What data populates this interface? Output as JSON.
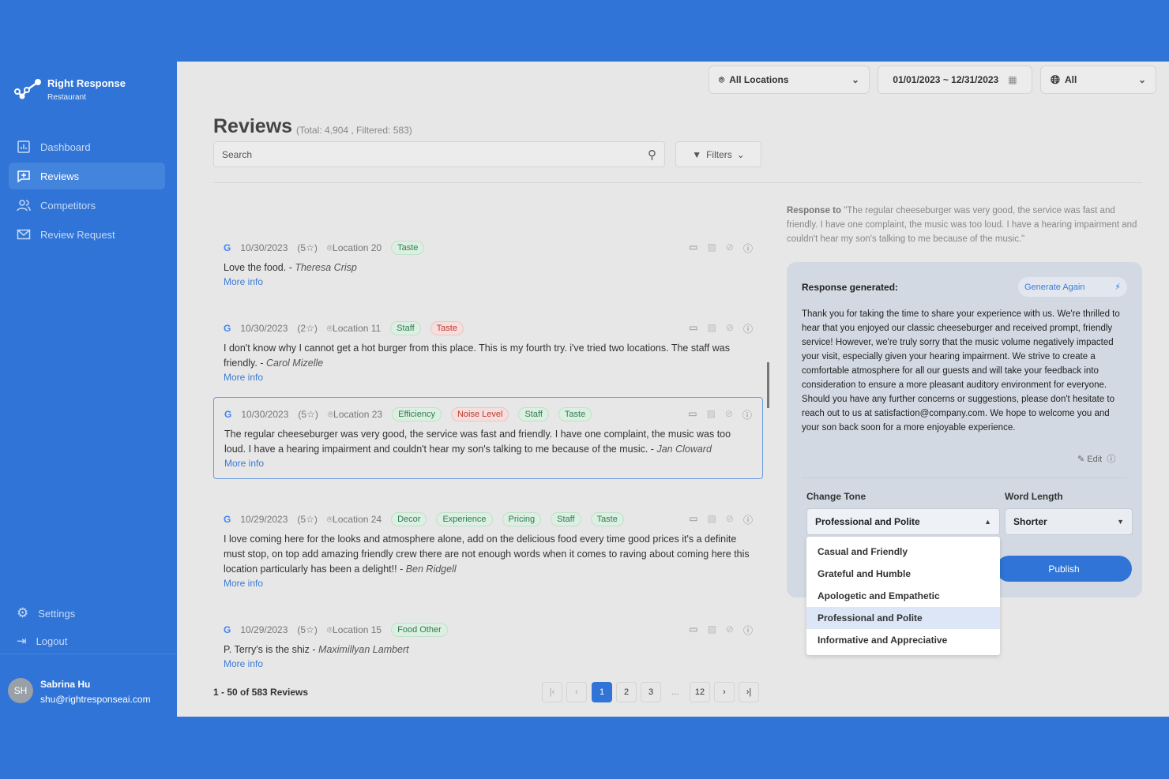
{
  "brand": {
    "name": "Right Response",
    "sub": "Restaurant"
  },
  "nav": [
    {
      "label": "Dashboard"
    },
    {
      "label": "Reviews",
      "active": true
    },
    {
      "label": "Competitors"
    },
    {
      "label": "Review Request"
    }
  ],
  "bottom_nav": [
    {
      "label": "Settings"
    },
    {
      "label": "Logout"
    }
  ],
  "user": {
    "initials": "SH",
    "name": "Sabrina Hu",
    "email": "shu@rightresponseai.com"
  },
  "filters_bar": {
    "location": "All Locations",
    "date_range": "01/01/2023 ~ 12/31/2023",
    "language": "All"
  },
  "page": {
    "title": "Reviews",
    "total": "(Total: 4,904 , Filtered: 583)",
    "search_placeholder": "Search",
    "filters_label": "Filters"
  },
  "colors": {
    "accent": "#2f74d6",
    "tag_positive": "#2e7d4f",
    "tag_negative": "#c0392b"
  },
  "reviews": [
    {
      "date": "10/30/2023",
      "rating": "(5☆)",
      "location": "Location 20",
      "tags": [
        {
          "label": "Taste",
          "sentiment": "positive"
        }
      ],
      "text": "Love the food.",
      "author": "Theresa Crisp",
      "more": "More info"
    },
    {
      "date": "10/30/2023",
      "rating": "(2☆)",
      "location": "Location 11",
      "tags": [
        {
          "label": "Staff",
          "sentiment": "positive"
        },
        {
          "label": "Taste",
          "sentiment": "negative"
        }
      ],
      "text": "I don't know why I cannot get a hot burger from this place. This is my fourth try. i've tried two locations. The staff was friendly.",
      "author": "Carol Mizelle",
      "more": "More info"
    },
    {
      "date": "10/30/2023",
      "rating": "(5☆)",
      "location": "Location 23",
      "tags": [
        {
          "label": "Efficiency",
          "sentiment": "positive"
        },
        {
          "label": "Noise Level",
          "sentiment": "negative"
        },
        {
          "label": "Staff",
          "sentiment": "positive"
        },
        {
          "label": "Taste",
          "sentiment": "positive"
        }
      ],
      "text": "The regular cheeseburger was very good, the service was fast and friendly. I have one complaint, the music was too loud. I have a hearing impairment and couldn't hear my son's talking to me because of the music.",
      "author": "Jan Cloward",
      "more": "More info",
      "selected": true
    },
    {
      "date": "10/29/2023",
      "rating": "(5☆)",
      "location": "Location 24",
      "tags": [
        {
          "label": "Decor",
          "sentiment": "positive"
        },
        {
          "label": "Experience",
          "sentiment": "positive"
        },
        {
          "label": "Pricing",
          "sentiment": "positive"
        },
        {
          "label": "Staff",
          "sentiment": "positive"
        },
        {
          "label": "Taste",
          "sentiment": "positive"
        }
      ],
      "text": "I love coming here for the looks and atmosphere alone, add on the delicious food every time good prices it's a definite must stop, on top add amazing friendly crew there are not enough words when it comes to raving about coming here this location particularly has been a delight!!",
      "author": "Ben Ridgell",
      "more": "More info"
    },
    {
      "date": "10/29/2023",
      "rating": "(5☆)",
      "location": "Location 15",
      "tags": [
        {
          "label": "Food Other",
          "sentiment": "positive"
        }
      ],
      "text": "P. Terry's is the shiz",
      "author": "Maximillyan Lambert",
      "more": "More info"
    }
  ],
  "pagination": {
    "summary": "1 - 50 of 583 Reviews",
    "pages": [
      "1",
      "2",
      "3",
      "...",
      "12"
    ],
    "current": "1"
  },
  "response": {
    "to_label": "Response to",
    "to_text": "\"The regular cheeseburger was very good, the service was fast and friendly. I have one complaint, the music was too loud. I have a hearing impairment and couldn't hear my son's talking to me because of the music.\"",
    "generated_label": "Response generated:",
    "generate_again": "Generate Again",
    "text": "Thank you for taking the time to share your experience with us. We're thrilled to hear that you enjoyed our classic cheeseburger and received prompt, friendly service! However, we're truly sorry that the music volume negatively impacted your visit, especially given your hearing impairment. We strive to create a comfortable atmosphere for all our guests and will take your feedback into consideration to ensure a more pleasant auditory environment for everyone. Should you have any further concerns or suggestions, please don't hesitate to reach out to us at satisfaction@company.com. We hope to welcome you and your son back soon for a more enjoyable experience.",
    "edit": "Edit",
    "tone_label": "Change Tone",
    "tone_value": "Professional and Polite",
    "length_label": "Word Length",
    "length_value": "Shorter",
    "publish": "Publish",
    "tone_options": [
      "Casual and Friendly",
      "Grateful and Humble",
      "Apologetic and Empathetic",
      "Professional and Polite",
      "Informative and Appreciative"
    ]
  }
}
